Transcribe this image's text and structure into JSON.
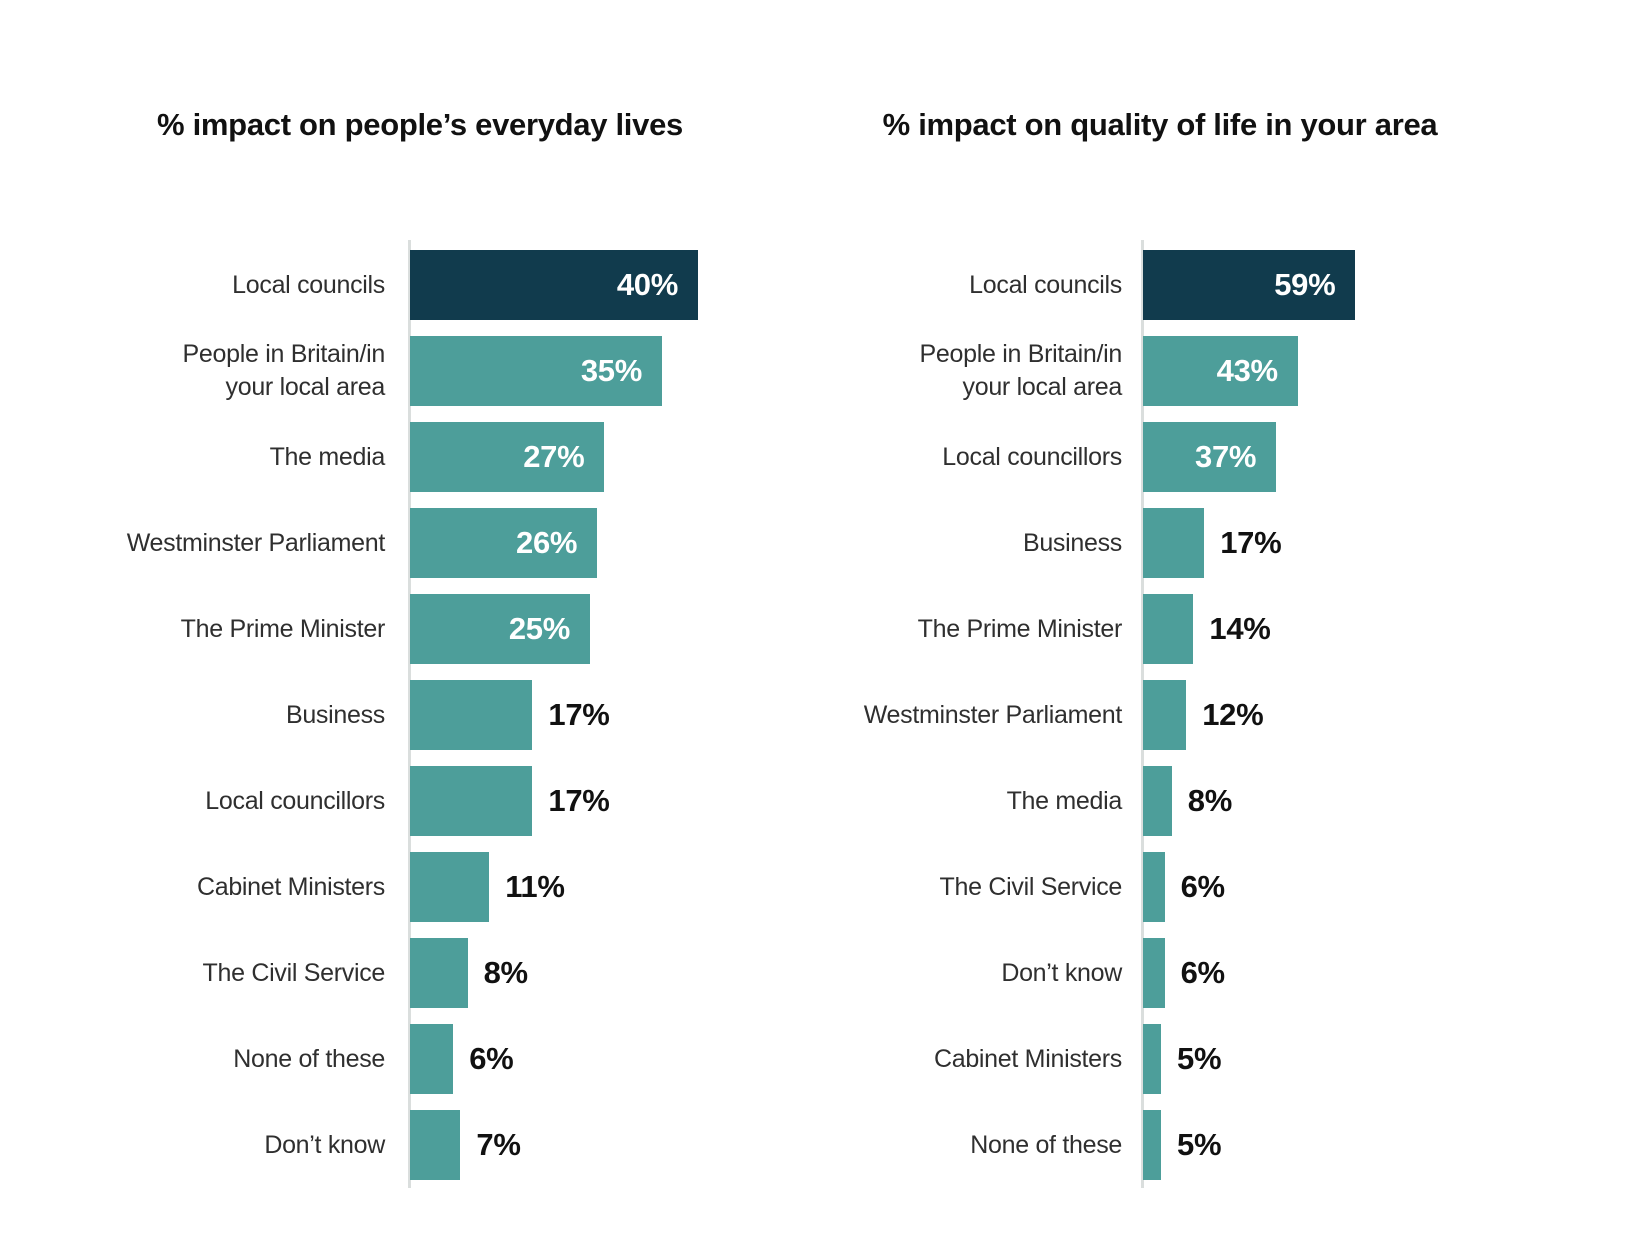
{
  "colors": {
    "highlight_bar": "#113b4d",
    "bar": "#4d9e9a",
    "axis_line": "#dadedd",
    "category_label": "#2f2f2f",
    "value_inside": "#ffffff",
    "value_outside": "#111111",
    "title": "#111111",
    "background": "#ffffff"
  },
  "chart_data": [
    {
      "type": "bar",
      "orientation": "horizontal",
      "title": "% impact on people’s everyday lives",
      "unit": "%",
      "xlim": [
        0,
        47
      ],
      "grid": false,
      "legend": "none",
      "value_labels": "shown",
      "bars": [
        {
          "label": "Local councils",
          "value": 40,
          "display": "40%",
          "highlight": true
        },
        {
          "label": "People in Britain/in\nyour local area",
          "value": 35,
          "display": "35%",
          "highlight": false
        },
        {
          "label": "The media",
          "value": 27,
          "display": "27%",
          "highlight": false
        },
        {
          "label": "Westminster Parliament",
          "value": 26,
          "display": "26%",
          "highlight": false
        },
        {
          "label": "The Prime Minister",
          "value": 25,
          "display": "25%",
          "highlight": false
        },
        {
          "label": "Business",
          "value": 17,
          "display": "17%",
          "highlight": false
        },
        {
          "label": "Local councillors",
          "value": 17,
          "display": "17%",
          "highlight": false
        },
        {
          "label": "Cabinet Ministers",
          "value": 11,
          "display": "11%",
          "highlight": false
        },
        {
          "label": "The Civil Service",
          "value": 8,
          "display": "8%",
          "highlight": false
        },
        {
          "label": "None of these",
          "value": 6,
          "display": "6%",
          "highlight": false
        },
        {
          "label": "Don’t know",
          "value": 7,
          "display": "7%",
          "highlight": false
        }
      ]
    },
    {
      "type": "bar",
      "orientation": "horizontal",
      "title": "% impact on quality of life in your area",
      "unit": "%",
      "xlim": [
        0,
        105
      ],
      "grid": false,
      "legend": "none",
      "value_labels": "shown",
      "bars": [
        {
          "label": "Local councils",
          "value": 59,
          "display": "59%",
          "highlight": true
        },
        {
          "label": "People in Britain/in\nyour local area",
          "value": 43,
          "display": "43%",
          "highlight": false
        },
        {
          "label": "Local councillors",
          "value": 37,
          "display": "37%",
          "highlight": false
        },
        {
          "label": "Business",
          "value": 17,
          "display": "17%",
          "highlight": false
        },
        {
          "label": "The Prime Minister",
          "value": 14,
          "display": "14%",
          "highlight": false
        },
        {
          "label": "Westminster Parliament",
          "value": 12,
          "display": "12%",
          "highlight": false
        },
        {
          "label": "The media",
          "value": 8,
          "display": "8%",
          "highlight": false
        },
        {
          "label": "The Civil Service",
          "value": 6,
          "display": "6%",
          "highlight": false
        },
        {
          "label": "Don’t know",
          "value": 6,
          "display": "6%",
          "highlight": false
        },
        {
          "label": "Cabinet Ministers",
          "value": 5,
          "display": "5%",
          "highlight": false
        },
        {
          "label": "None of these",
          "value": 5,
          "display": "5%",
          "highlight": false
        }
      ]
    }
  ]
}
